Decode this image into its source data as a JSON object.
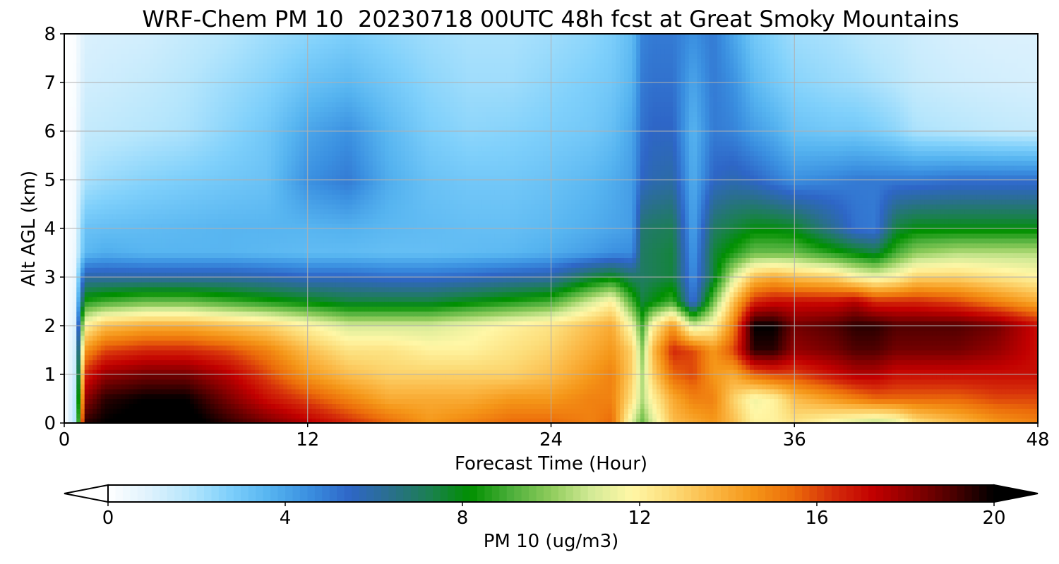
{
  "chart_data": {
    "type": "heatmap",
    "title": "WRF-Chem PM 10  20230718 00UTC 48h fcst at Great Smoky Mountains",
    "xlabel": "Forecast Time (Hour)",
    "ylabel": "Alt AGL (km)",
    "xlim": [
      0,
      48
    ],
    "ylim": [
      0,
      8
    ],
    "x_ticks": [
      "0",
      "12",
      "24",
      "36",
      "48"
    ],
    "y_ticks": [
      "0",
      "1",
      "2",
      "3",
      "4",
      "5",
      "6",
      "7",
      "8"
    ],
    "grid": true,
    "colorbar": {
      "label": "PM 10  (ug/m3)",
      "ticks": [
        "0",
        "4",
        "8",
        "12",
        "16",
        "20"
      ],
      "range": [
        0,
        20
      ],
      "extend": "both",
      "placement": "bottom",
      "colors": [
        "#ffffff",
        "#dff2fd",
        "#b6e6fc",
        "#7fd0fb",
        "#56b4f0",
        "#3a8fe0",
        "#2e66c7",
        "#2a6f8e",
        "#1b8050",
        "#009000",
        "#4caf3a",
        "#8fcc5c",
        "#d3ea96",
        "#fff7a6",
        "#fcdc78",
        "#fbb845",
        "#f59618",
        "#ec6d0a",
        "#d52d0a",
        "#c20000",
        "#8a0000",
        "#4a0000",
        "#000000"
      ]
    },
    "x_hours": [
      0,
      0.5,
      1,
      2,
      4,
      6,
      8,
      10,
      12,
      14,
      16,
      18,
      20,
      22,
      24,
      26,
      27,
      28,
      28.5,
      29,
      30,
      31,
      32,
      33,
      34,
      35,
      36,
      38,
      39,
      40,
      41,
      42,
      44,
      46,
      48
    ],
    "z_km": [
      0,
      0.5,
      1,
      1.5,
      2,
      2.5,
      3,
      3.5,
      4,
      5,
      6,
      7,
      8
    ],
    "pm10_ugm3": [
      [
        0,
        1.8,
        19.5,
        20,
        20.5,
        20.5,
        19.5,
        18.5,
        17.5,
        16.5,
        15.5,
        14.5,
        15,
        15.5,
        15.5,
        15,
        15.5,
        11,
        9.5,
        11,
        13.5,
        14,
        14.5,
        13.5,
        12,
        12,
        12.5,
        11.5,
        11,
        10.5,
        11,
        12.5,
        13.5,
        14.5,
        15
      ],
      [
        0,
        1.6,
        18,
        19.5,
        20,
        20,
        18.5,
        17,
        16,
        15,
        14,
        14,
        14,
        14.5,
        14.5,
        15,
        15,
        12.5,
        10.5,
        12,
        14,
        15,
        15,
        13,
        11.5,
        12,
        13.5,
        14.5,
        15,
        15.5,
        15.5,
        15.5,
        15.5,
        16,
        16
      ],
      [
        0,
        1.4,
        16.5,
        18,
        18.5,
        18.5,
        17.5,
        16,
        14.5,
        13.5,
        13,
        13,
        13,
        13,
        13.5,
        14.5,
        15,
        13,
        10.5,
        13,
        15.5,
        16,
        14.5,
        14,
        15.5,
        16,
        16,
        17,
        17.5,
        17.5,
        17,
        17,
        17,
        17,
        17
      ],
      [
        0,
        1.2,
        14.5,
        16,
        16.5,
        16.5,
        16,
        15,
        13.5,
        12.5,
        12.5,
        12,
        12,
        12.5,
        13,
        14,
        14.5,
        13,
        10,
        13.5,
        16.5,
        16,
        14.5,
        16,
        19.5,
        19.5,
        18,
        18.5,
        19,
        19,
        18.5,
        18.5,
        18.5,
        18,
        17
      ],
      [
        0,
        1,
        12,
        13.5,
        14,
        14,
        13.5,
        13,
        12,
        11,
        11,
        11,
        11.5,
        12,
        12.5,
        13.5,
        14,
        11.5,
        9,
        12,
        14.5,
        11,
        12,
        15,
        20,
        20,
        18.5,
        19,
        19.5,
        19.5,
        19,
        19,
        19,
        18.5,
        17
      ],
      [
        0,
        0.8,
        8.5,
        9,
        9.5,
        9.5,
        9,
        8.5,
        8,
        7.5,
        7.5,
        7.5,
        8,
        8.5,
        9,
        11,
        12,
        9,
        7.5,
        8,
        9,
        5,
        9.5,
        13.5,
        16.5,
        17,
        17,
        17,
        17.5,
        16.5,
        16.5,
        16.5,
        16,
        15,
        14
      ],
      [
        0,
        0.6,
        6,
        6,
        6,
        6,
        6,
        5.8,
        5.5,
        5.5,
        5.3,
        5.3,
        5.5,
        5.8,
        6,
        7.5,
        8,
        7,
        7,
        7.2,
        7.5,
        4.5,
        7.5,
        11,
        13.5,
        14,
        13.5,
        13,
        12,
        11.5,
        12,
        13,
        13,
        12.5,
        12
      ],
      [
        0,
        0.5,
        3.5,
        3.8,
        3.6,
        3.6,
        3.6,
        3.5,
        3.4,
        3.4,
        3.3,
        3.3,
        3.4,
        3.5,
        3.8,
        4.2,
        4.5,
        4.6,
        7,
        7.2,
        7.5,
        4.2,
        7.5,
        8.5,
        9.5,
        9.5,
        9.5,
        8.5,
        8,
        7.5,
        9,
        10,
        10.5,
        10.5,
        10.5
      ],
      [
        0,
        0.4,
        3.2,
        3.3,
        3.4,
        3.5,
        3.6,
        3.6,
        3.6,
        3.7,
        3.5,
        3.4,
        3.3,
        3.3,
        3.5,
        3.8,
        4,
        4.2,
        6.8,
        7,
        7.2,
        4,
        7,
        7.5,
        8,
        8,
        7.8,
        6.2,
        5.2,
        5,
        7.5,
        8,
        8,
        8,
        8
      ],
      [
        0,
        0.3,
        2,
        2.3,
        2.6,
        2.8,
        3,
        3.2,
        4.5,
        5,
        3.8,
        3.2,
        3,
        3,
        3.2,
        3.5,
        3.8,
        4.2,
        5.5,
        5.8,
        6,
        3.8,
        5.5,
        5.8,
        5.5,
        5,
        4.5,
        4.8,
        5,
        5,
        5,
        5,
        5.2,
        5.2,
        5.2
      ],
      [
        0,
        0.2,
        1.5,
        1.6,
        1.8,
        2,
        2.5,
        3,
        4,
        4.5,
        3.5,
        2.8,
        2.5,
        2.6,
        2.8,
        3,
        3.3,
        4,
        5.2,
        5.5,
        5.5,
        3.6,
        5,
        4.8,
        4.2,
        3.8,
        3.2,
        3,
        3,
        2.8,
        2.5,
        2,
        1.8,
        1.6,
        1.5
      ],
      [
        0,
        0.15,
        1.2,
        1.3,
        1.5,
        1.8,
        2.2,
        2.6,
        3.2,
        3.5,
        3,
        2.5,
        2.2,
        2.2,
        2.5,
        2.8,
        3,
        3.6,
        5,
        5.2,
        5.2,
        4,
        5,
        4.5,
        3.5,
        3,
        2.6,
        2.3,
        2.2,
        2,
        1.8,
        1.5,
        1.3,
        1.2,
        1.1
      ],
      [
        0,
        0.1,
        1,
        1.1,
        1.2,
        1.5,
        1.8,
        2.2,
        2.5,
        2.8,
        2.5,
        2.2,
        2,
        2,
        2.2,
        2.5,
        2.8,
        3.4,
        4.8,
        5,
        5,
        4.5,
        5,
        4,
        3,
        2.6,
        2.2,
        2,
        1.8,
        1.6,
        1.5,
        1.3,
        1.1,
        1,
        1
      ]
    ]
  }
}
